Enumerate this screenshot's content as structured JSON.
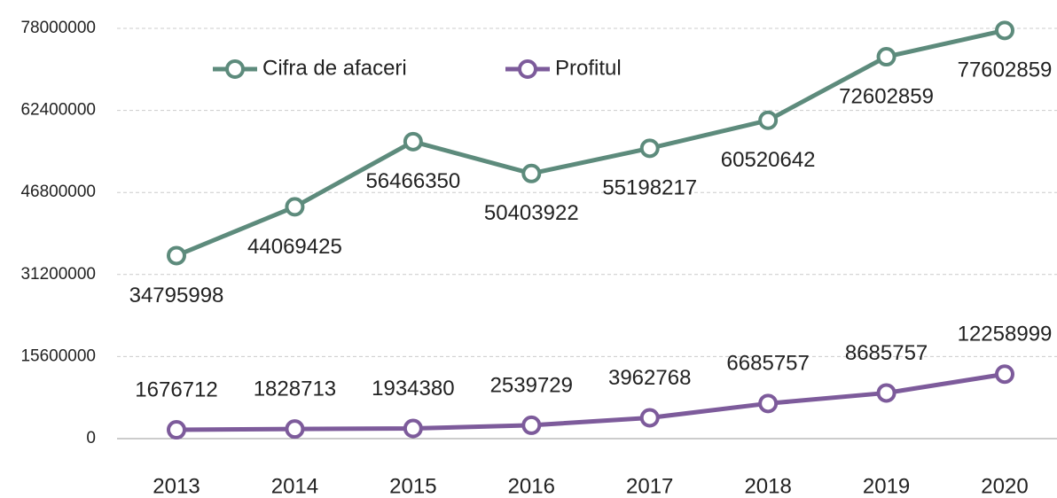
{
  "chart_data": {
    "type": "line",
    "categories": [
      "2013",
      "2014",
      "2015",
      "2016",
      "2017",
      "2018",
      "2019",
      "2020"
    ],
    "series": [
      {
        "name": "Cifra de afaceri",
        "color": "#5d8b7c",
        "values": [
          34795998,
          44069425,
          56466350,
          50403922,
          55198217,
          60520642,
          72602859,
          77602859
        ]
      },
      {
        "name": "Profitul",
        "color": "#7d5b9b",
        "values": [
          1676712,
          1828713,
          1934380,
          2539729,
          3962768,
          6685757,
          8685757,
          12258999
        ]
      }
    ],
    "ylim": [
      0,
      78000000
    ],
    "yticks": [
      0,
      15600000,
      31200000,
      46800000,
      62400000,
      78000000
    ],
    "grid": true,
    "legend": "top"
  }
}
